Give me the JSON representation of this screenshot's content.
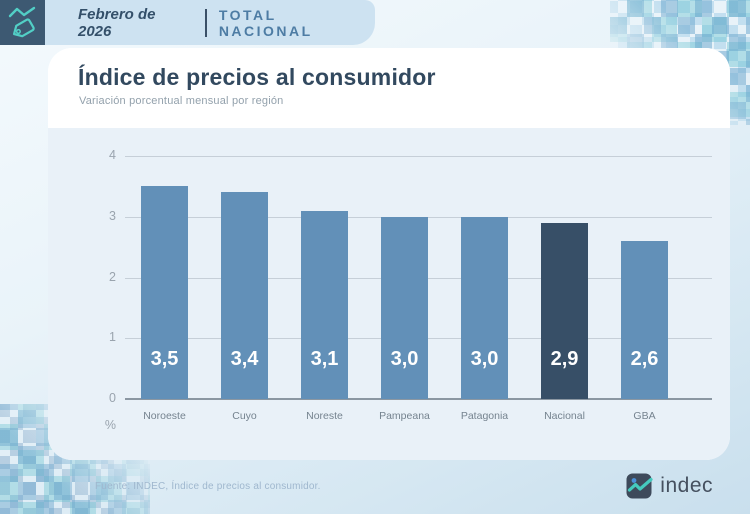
{
  "header": {
    "period": "Febrero de 2026",
    "scope": "TOTAL NACIONAL"
  },
  "title": "Índice de precios al consumidor",
  "subtitle": "Variación porcentual mensual por región",
  "chart_data": {
    "type": "bar",
    "title": "Índice de precios al consumidor",
    "subtitle": "Variación porcentual mensual por región",
    "categories": [
      "Noroeste",
      "Cuyo",
      "Noreste",
      "Pampeana",
      "Patagonia",
      "Nacional",
      "GBA"
    ],
    "values": [
      3.5,
      3.4,
      3.1,
      3.0,
      3.0,
      2.9,
      2.6
    ],
    "value_labels": [
      "3,5",
      "3,4",
      "3,1",
      "3,0",
      "3,0",
      "2,9",
      "2,6"
    ],
    "highlight_category": "Nacional",
    "bar_color": "#6290b8",
    "highlight_color": "#374f67",
    "xlabel": "",
    "ylabel": "%",
    "y_ticks": [
      4,
      3,
      2,
      1,
      0
    ],
    "ylim": [
      0,
      4
    ],
    "grid": true,
    "legend": false
  },
  "footer": {
    "source": "Fuente: INDEC, Índice de precios al consumidor.",
    "logo_text": "indec"
  },
  "colors": {
    "accent_teal": "#52cfc6",
    "brand_dark": "#3d5972",
    "header_bg": "#cde2f1",
    "chart_bg": "#e9f1f8"
  }
}
